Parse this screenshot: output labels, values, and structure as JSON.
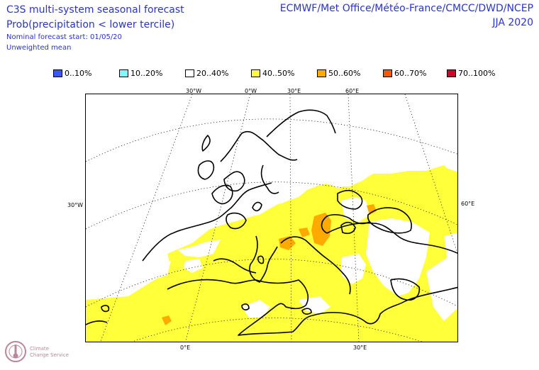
{
  "header": {
    "title": "C3S multi-system seasonal forecast",
    "subtitle": "Prob(precipitation < lower tercile)",
    "start": "Nominal forecast start: 01/05/20",
    "mean": "Unweighted mean",
    "centres": "ECMWF/Met Office/Météo-France/CMCC/DWD/NCEP",
    "season": "JJA 2020"
  },
  "legend": [
    {
      "label": "0..10%",
      "color": "#3b55ff"
    },
    {
      "label": "10..20%",
      "color": "#7ffbff"
    },
    {
      "label": "20..40%",
      "color": "#ffffff"
    },
    {
      "label": "40..50%",
      "color": "#ffff3a"
    },
    {
      "label": "50..60%",
      "color": "#ffaa00"
    },
    {
      "label": "60..70%",
      "color": "#ff5500"
    },
    {
      "label": "70..100%",
      "color": "#d6002a"
    }
  ],
  "graticule": {
    "top_labels": [
      "30°W",
      "0°W",
      "30°E",
      "60°E"
    ],
    "left_label": "30°W",
    "right_label": "60°E",
    "bottom_labels": [
      "0°E",
      "30°E"
    ]
  },
  "logo": {
    "line1": "Climate",
    "line2": "Change Service",
    "icon": "thermometer-globe-icon"
  }
}
